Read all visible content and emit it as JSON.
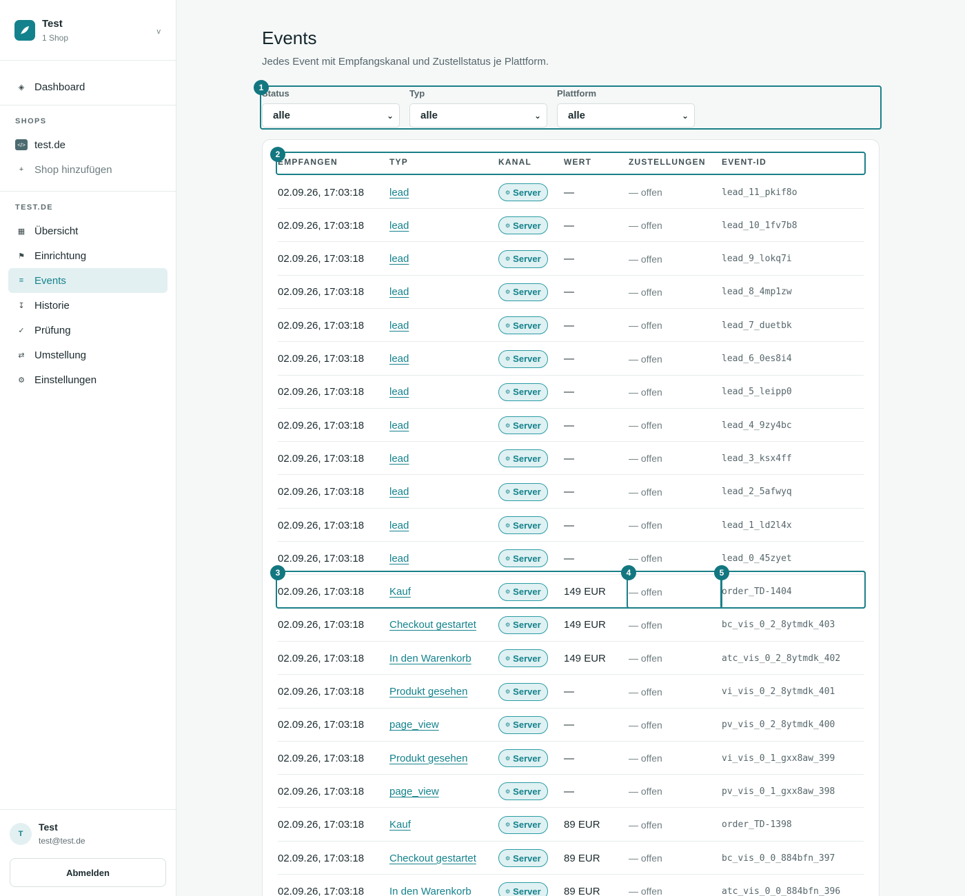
{
  "workspace": {
    "name": "Test",
    "subtitle": "1 Shop"
  },
  "nav_top": {
    "dashboard": "Dashboard"
  },
  "shops_section": {
    "label": "SHOPS",
    "shop": "test.de",
    "add": "Shop hinzufügen"
  },
  "shop_section": {
    "label": "TEST.DE",
    "items": [
      {
        "label": "Übersicht",
        "icon": "grid-icon"
      },
      {
        "label": "Einrichtung",
        "icon": "flag-icon"
      },
      {
        "label": "Events",
        "icon": "list-icon",
        "active": true
      },
      {
        "label": "Historie",
        "icon": "history-icon"
      },
      {
        "label": "Prüfung",
        "icon": "check-icon"
      },
      {
        "label": "Umstellung",
        "icon": "switch-icon"
      },
      {
        "label": "Einstellungen",
        "icon": "gear-icon"
      }
    ]
  },
  "user": {
    "initial": "T",
    "name": "Test",
    "email": "test@test.de",
    "logout": "Abmelden"
  },
  "page": {
    "title": "Events",
    "subtitle": "Jedes Event mit Empfangskanal und Zustellstatus je Plattform."
  },
  "filters": [
    {
      "label": "Status",
      "value": "alle"
    },
    {
      "label": "Typ",
      "value": "alle"
    },
    {
      "label": "Plattform",
      "value": "alle"
    }
  ],
  "table": {
    "columns": [
      "EMPFANGEN",
      "TYP",
      "KANAL",
      "WERT",
      "ZUSTELLUNGEN",
      "EVENT-ID"
    ],
    "rows": [
      {
        "date": "02.09.26, 17:03:18",
        "type": "lead",
        "channel": "Server",
        "value": "—",
        "delivery": "— offen",
        "id": "lead_11_pkif8o"
      },
      {
        "date": "02.09.26, 17:03:18",
        "type": "lead",
        "channel": "Server",
        "value": "—",
        "delivery": "— offen",
        "id": "lead_10_1fv7b8"
      },
      {
        "date": "02.09.26, 17:03:18",
        "type": "lead",
        "channel": "Server",
        "value": "—",
        "delivery": "— offen",
        "id": "lead_9_lokq7i"
      },
      {
        "date": "02.09.26, 17:03:18",
        "type": "lead",
        "channel": "Server",
        "value": "—",
        "delivery": "— offen",
        "id": "lead_8_4mp1zw"
      },
      {
        "date": "02.09.26, 17:03:18",
        "type": "lead",
        "channel": "Server",
        "value": "—",
        "delivery": "— offen",
        "id": "lead_7_duetbk"
      },
      {
        "date": "02.09.26, 17:03:18",
        "type": "lead",
        "channel": "Server",
        "value": "—",
        "delivery": "— offen",
        "id": "lead_6_0es8i4"
      },
      {
        "date": "02.09.26, 17:03:18",
        "type": "lead",
        "channel": "Server",
        "value": "—",
        "delivery": "— offen",
        "id": "lead_5_leipp0"
      },
      {
        "date": "02.09.26, 17:03:18",
        "type": "lead",
        "channel": "Server",
        "value": "—",
        "delivery": "— offen",
        "id": "lead_4_9zy4bc"
      },
      {
        "date": "02.09.26, 17:03:18",
        "type": "lead",
        "channel": "Server",
        "value": "—",
        "delivery": "— offen",
        "id": "lead_3_ksx4ff"
      },
      {
        "date": "02.09.26, 17:03:18",
        "type": "lead",
        "channel": "Server",
        "value": "—",
        "delivery": "— offen",
        "id": "lead_2_5afwyq"
      },
      {
        "date": "02.09.26, 17:03:18",
        "type": "lead",
        "channel": "Server",
        "value": "—",
        "delivery": "— offen",
        "id": "lead_1_ld2l4x"
      },
      {
        "date": "02.09.26, 17:03:18",
        "type": "lead",
        "channel": "Server",
        "value": "—",
        "delivery": "— offen",
        "id": "lead_0_45zyet"
      },
      {
        "date": "02.09.26, 17:03:18",
        "type": "Kauf",
        "channel": "Server",
        "value": "149 EUR",
        "delivery": "— offen",
        "id": "order_TD-1404"
      },
      {
        "date": "02.09.26, 17:03:18",
        "type": "Checkout gestartet",
        "channel": "Server",
        "value": "149 EUR",
        "delivery": "— offen",
        "id": "bc_vis_0_2_8ytmdk_403"
      },
      {
        "date": "02.09.26, 17:03:18",
        "type": "In den Warenkorb",
        "channel": "Server",
        "value": "149 EUR",
        "delivery": "— offen",
        "id": "atc_vis_0_2_8ytmdk_402"
      },
      {
        "date": "02.09.26, 17:03:18",
        "type": "Produkt gesehen",
        "channel": "Server",
        "value": "—",
        "delivery": "— offen",
        "id": "vi_vis_0_2_8ytmdk_401"
      },
      {
        "date": "02.09.26, 17:03:18",
        "type": "page_view",
        "channel": "Server",
        "value": "—",
        "delivery": "— offen",
        "id": "pv_vis_0_2_8ytmdk_400"
      },
      {
        "date": "02.09.26, 17:03:18",
        "type": "Produkt gesehen",
        "channel": "Server",
        "value": "—",
        "delivery": "— offen",
        "id": "vi_vis_0_1_gxx8aw_399"
      },
      {
        "date": "02.09.26, 17:03:18",
        "type": "page_view",
        "channel": "Server",
        "value": "—",
        "delivery": "— offen",
        "id": "pv_vis_0_1_gxx8aw_398"
      },
      {
        "date": "02.09.26, 17:03:18",
        "type": "Kauf",
        "channel": "Server",
        "value": "89 EUR",
        "delivery": "— offen",
        "id": "order_TD-1398"
      },
      {
        "date": "02.09.26, 17:03:18",
        "type": "Checkout gestartet",
        "channel": "Server",
        "value": "89 EUR",
        "delivery": "— offen",
        "id": "bc_vis_0_0_884bfn_397"
      },
      {
        "date": "02.09.26, 17:03:18",
        "type": "In den Warenkorb",
        "channel": "Server",
        "value": "89 EUR",
        "delivery": "— offen",
        "id": "atc_vis_0_0_884bfn_396"
      }
    ]
  },
  "annotations": [
    "1",
    "2",
    "3",
    "4",
    "5"
  ]
}
